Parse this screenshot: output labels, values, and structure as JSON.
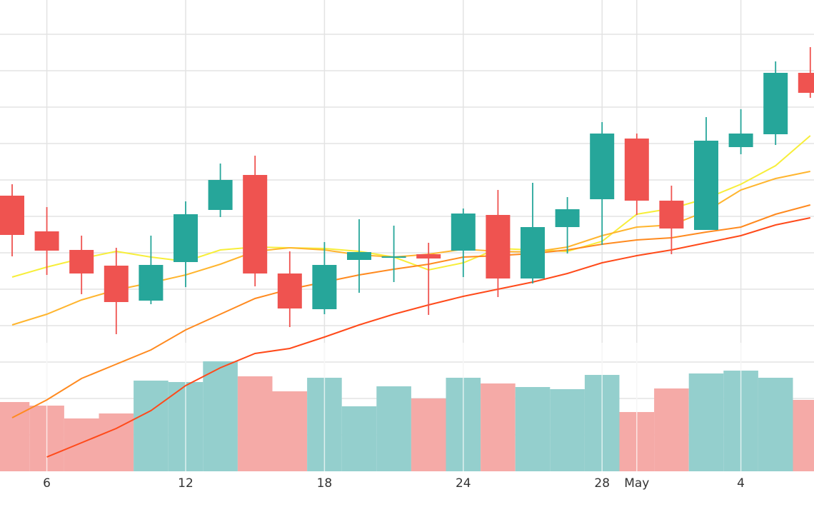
{
  "chart_data": {
    "type": "candlestick",
    "categories": [
      null,
      "6",
      null,
      null,
      null,
      "12",
      null,
      null,
      null,
      "18",
      null,
      null,
      null,
      "24",
      null,
      null,
      null,
      "28",
      "May",
      null,
      null,
      "4",
      null,
      null
    ],
    "open": [
      386,
      336,
      310,
      288,
      239,
      293,
      366,
      415,
      277,
      227,
      296,
      299,
      304,
      309,
      359,
      270,
      342,
      381,
      466,
      379,
      338,
      454,
      472,
      558
    ],
    "high": [
      402,
      370,
      330,
      313,
      330,
      378,
      431,
      442,
      308,
      321,
      353,
      344,
      320,
      368,
      394,
      404,
      384,
      489,
      473,
      400,
      496,
      507,
      574,
      594
    ],
    "low": [
      301,
      275,
      248,
      192,
      234,
      258,
      356,
      259,
      202,
      220,
      250,
      265,
      219,
      272,
      244,
      263,
      305,
      317,
      359,
      304,
      338,
      444,
      457,
      523
    ],
    "close": [
      331,
      309,
      277,
      237,
      289,
      360,
      408,
      277,
      228,
      289,
      307,
      301,
      298,
      361,
      270,
      342,
      367,
      473,
      379,
      340,
      463,
      473,
      558,
      530
    ],
    "volume": [
      97,
      92,
      74,
      81,
      127,
      125,
      154,
      133,
      112,
      131,
      91,
      119,
      102,
      131,
      123,
      118,
      115,
      135,
      83,
      116,
      137,
      141,
      131,
      100
    ],
    "up_color": "#26a69a",
    "down_color": "#ef5350",
    "volume_up_color": "#94cfcd",
    "volume_down_color": "#f5aaa7",
    "moving_averages": [
      {
        "color": "#f7ee3a",
        "values": [
          272,
          286,
          298,
          308,
          300,
          294,
          310,
          314,
          313,
          312,
          308,
          300,
          282,
          292,
          312,
          310,
          308,
          322,
          360,
          368,
          382,
          402,
          428,
          470
        ]
      },
      {
        "color": "#ffb52e",
        "values": [
          205,
          220,
          240,
          254,
          264,
          275,
          290,
          308,
          313,
          310,
          303,
          300,
          304,
          311,
          308,
          307,
          314,
          330,
          342,
          345,
          364,
          394,
          410,
          420
        ]
      },
      {
        "color": "#ff8a1f",
        "values": [
          75,
          100,
          130,
          150,
          170,
          198,
          220,
          242,
          255,
          265,
          275,
          283,
          290,
          300,
          302,
          305,
          310,
          318,
          324,
          327,
          335,
          342,
          360,
          373
        ]
      },
      {
        "color": "#ff4a1a",
        "values": [
          null,
          20,
          40,
          60,
          85,
          120,
          145,
          165,
          172,
          188,
          205,
          220,
          233,
          245,
          255,
          265,
          277,
          292,
          302,
          310,
          320,
          330,
          345,
          355
        ]
      }
    ],
    "ylim": [
      0,
      660
    ],
    "yticks": [
      51,
      102,
      153,
      204,
      255,
      306,
      357,
      408,
      459,
      510,
      561,
      612
    ],
    "y2lim": [
      0,
      660
    ],
    "grid": true
  }
}
